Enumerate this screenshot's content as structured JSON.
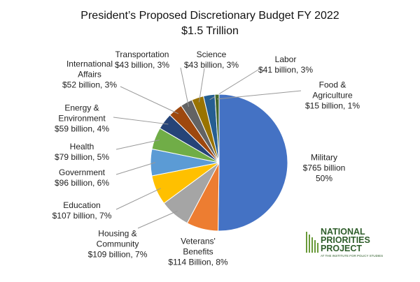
{
  "chart_data": {
    "type": "pie",
    "title": "President’s Proposed Discretionary Budget FY 2022",
    "subtitle": "$1.5 Trillion",
    "categories": [
      "Military",
      "Veterans'\nBenefits",
      "Housing &\nCommunity",
      "Education",
      "Government",
      "Health",
      "Energy &\nEnvironment",
      "International\nAffairs",
      "Transportation",
      "Science",
      "Labor",
      "Food &\nAgriculture"
    ],
    "values": [
      765,
      114,
      109,
      107,
      96,
      79,
      59,
      52,
      43,
      43,
      41,
      15
    ],
    "value_labels": [
      "$765 billion\n50%",
      "$114 Billion, 8%",
      "$109 billion, 7%",
      "$107 billion, 7%",
      "$96 billion, 6%",
      "$79 billion, 5%",
      "$59 billion, 4%",
      "$52 billion, 3%",
      "$43 billion, 3%",
      "$43 billion, 3%",
      "$41 billion, 3%",
      "$15 billion, 1%"
    ],
    "colors": [
      "#4472c4",
      "#ed7d31",
      "#a5a5a5",
      "#ffc000",
      "#5b9bd5",
      "#70ad47",
      "#264478",
      "#9e480e",
      "#636363",
      "#997300",
      "#255e91",
      "#43682b"
    ]
  },
  "logo": {
    "line1": "NATIONAL",
    "line2": "PRIORITIES",
    "line3": "PROJECT",
    "tagline": "AT THE INSTITUTE FOR POLICY STUDIES"
  }
}
